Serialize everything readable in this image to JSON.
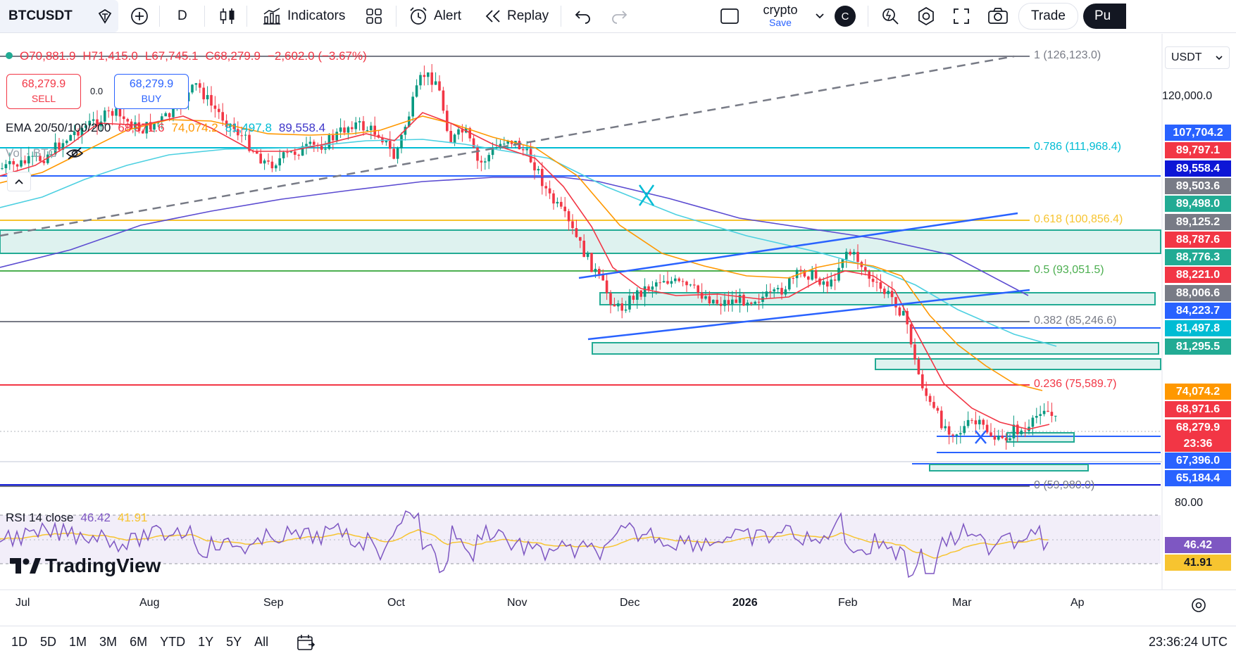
{
  "toolbar": {
    "symbol": "BTCUSDT",
    "interval": "D",
    "indicators_label": "Indicators",
    "alert_label": "Alert",
    "replay_label": "Replay",
    "layout_name": "crypto",
    "layout_sub": "Save",
    "avatar_letter": "C",
    "trade_label": "Trade",
    "publish_label": "Pu"
  },
  "ohlc": {
    "open": "O70,881.9",
    "high": "H71,415.0",
    "low": "L67,745.1",
    "close": "C68,279.9",
    "change": "−2,602.0 (−3.67%)"
  },
  "trade_buttons": {
    "sell_price": "68,279.9",
    "sell_label": "SELL",
    "spread": "0.0",
    "buy_price": "68,279.9",
    "buy_label": "BUY"
  },
  "ema_legend": {
    "label": "EMA 20/50/100/200",
    "v20": "68,971.6",
    "v50": "74,074.2",
    "v100": "81,497.8",
    "v200": "89,558.4"
  },
  "vol_legend": "Vol · BTC",
  "currency": "USDT",
  "fib_levels": [
    {
      "label": "1 (126,123.0)",
      "color": "#787b86"
    },
    {
      "label": "0.786 (111,968.4)",
      "color": "#00bcd4"
    },
    {
      "label": "0.618 (100,856.4)",
      "color": "#f7c430"
    },
    {
      "label": "0.5 (93,051.5)",
      "color": "#4caf50"
    },
    {
      "label": "0.382 (85,246.6)",
      "color": "#787b86"
    },
    {
      "label": "0.236 (75,589.7)",
      "color": "#f23645"
    },
    {
      "label": "0 (59,980.0)",
      "color": "#787b86"
    }
  ],
  "price_axis_text": [
    "120,000.0"
  ],
  "price_labels": [
    {
      "text": "107,704.2",
      "bg": "#2962ff"
    },
    {
      "text": "89,797.1",
      "bg": "#f23645"
    },
    {
      "text": "89,558.4",
      "bg": "#0d16d6"
    },
    {
      "text": "89,503.6",
      "bg": "#787b86"
    },
    {
      "text": "89,498.0",
      "bg": "#22ab94"
    },
    {
      "text": "89,125.2",
      "bg": "#787b86"
    },
    {
      "text": "88,787.6",
      "bg": "#f23645"
    },
    {
      "text": "88,776.3",
      "bg": "#22ab94"
    },
    {
      "text": "88,221.0",
      "bg": "#f23645"
    },
    {
      "text": "88,006.6",
      "bg": "#787b86"
    },
    {
      "text": "84,223.7",
      "bg": "#2962ff"
    },
    {
      "text": "81,497.8",
      "bg": "#00bcd4"
    },
    {
      "text": "81,295.5",
      "bg": "#22ab94"
    },
    {
      "text": "74,074.2",
      "bg": "#ff9800"
    },
    {
      "text": "68,971.6",
      "bg": "#f23645"
    },
    {
      "text": "68,279.9",
      "bg": "#f23645"
    },
    {
      "text": "23:36",
      "bg": "#f23645"
    },
    {
      "text": "67,396.0",
      "bg": "#2962ff"
    },
    {
      "text": "65,184.4",
      "bg": "#2962ff"
    }
  ],
  "rsi": {
    "label": "RSI 14 close",
    "value": "46.42",
    "ma": "41.91",
    "axis_top": "80.00"
  },
  "time_axis": [
    "Jul",
    "Aug",
    "Sep",
    "Oct",
    "Nov",
    "Dec",
    "2026",
    "Feb",
    "Mar",
    "Ap"
  ],
  "brand": "TradingView",
  "timeframes": [
    "1D",
    "5D",
    "1M",
    "3M",
    "6M",
    "YTD",
    "1Y",
    "5Y",
    "All"
  ],
  "clock": "23:36:24 UTC",
  "colors": {
    "up": "#089981",
    "down": "#f23645",
    "ema20": "#f23645",
    "ema50": "#ff9800",
    "ema100": "#4dd0e1",
    "ema200": "#5b4bd1",
    "trend_blue": "#2962ff",
    "zone_green": "#22ab94"
  }
}
